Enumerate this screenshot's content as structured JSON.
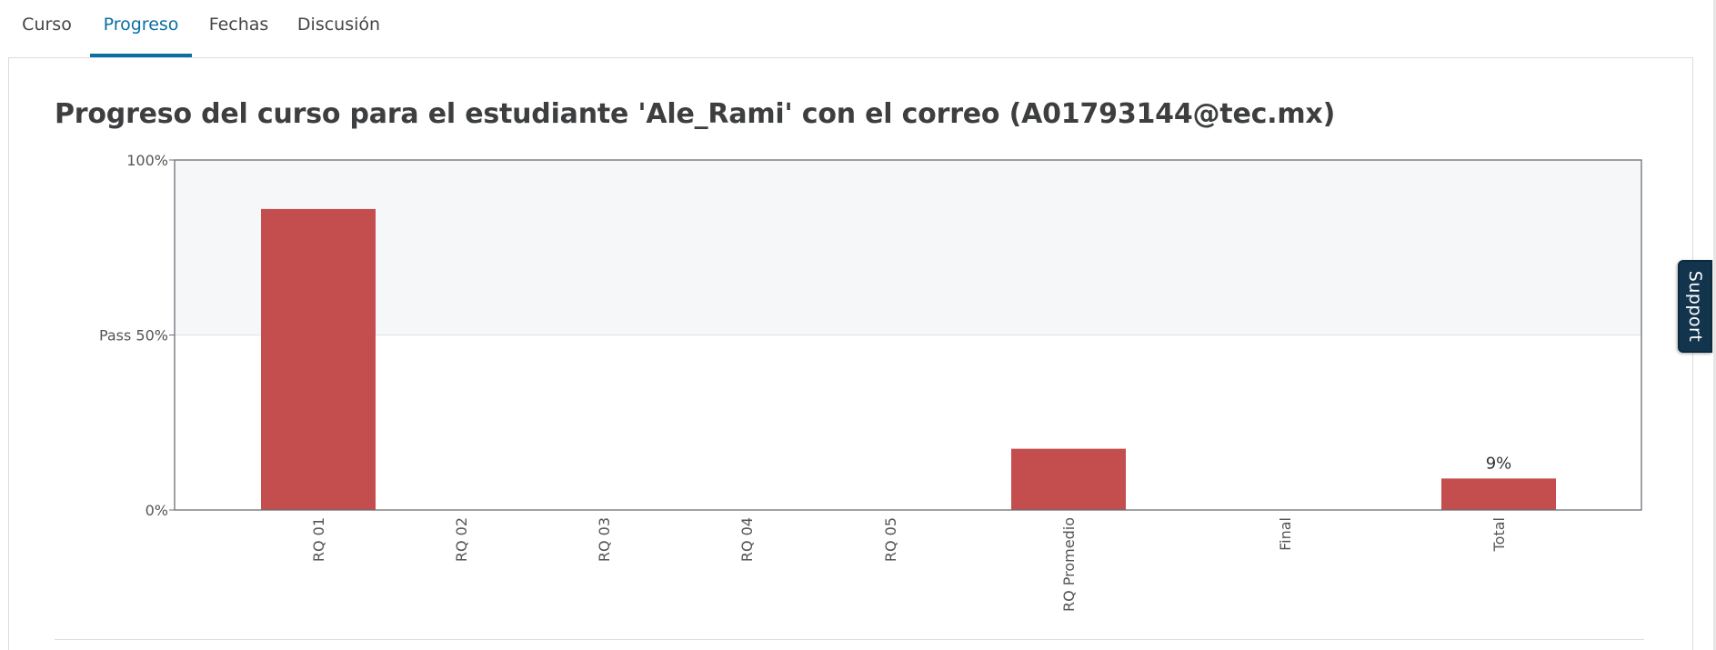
{
  "tabs": [
    {
      "label": "Curso"
    },
    {
      "label": "Progreso",
      "active": true
    },
    {
      "label": "Fechas"
    },
    {
      "label": "Discusión"
    }
  ],
  "page_title": "Progreso del curso para el estudiante 'Ale_Rami' con el correo (A01793144@tec.mx)",
  "support_label": "Support",
  "colors": {
    "accent": "#0b6fa4",
    "bar": "#c44e4e",
    "pass_band": "#f6f7f9",
    "support_bg": "#12354d"
  },
  "chart_data": {
    "type": "bar",
    "categories": [
      "RQ 01",
      "RQ 02",
      "RQ 03",
      "RQ 04",
      "RQ 05",
      "RQ Promedio",
      "Final",
      "Total"
    ],
    "values": [
      86,
      0,
      0,
      0,
      0,
      17.5,
      0,
      9
    ],
    "value_labels": [
      "",
      "",
      "",
      "",
      "",
      "",
      "",
      "9%"
    ],
    "ylim": [
      0,
      100
    ],
    "ytick_labels": [
      {
        "value": 100,
        "label": "100%"
      },
      {
        "value": 50,
        "label": "Pass 50%"
      },
      {
        "value": 0,
        "label": "0%"
      }
    ],
    "pass_threshold": 50
  }
}
